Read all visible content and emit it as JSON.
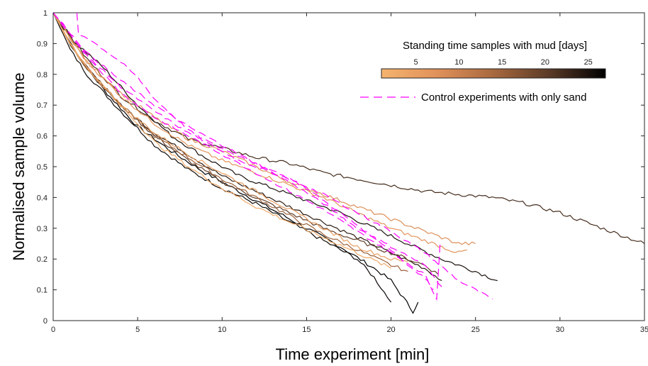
{
  "chart_data": {
    "type": "line",
    "title": "",
    "xlabel": "Time experiment [min]",
    "ylabel": "Normalised sample volume",
    "xlim": [
      0,
      35
    ],
    "ylim": [
      0,
      1
    ],
    "xticks": [
      0,
      5,
      10,
      15,
      20,
      25,
      30,
      35
    ],
    "yticks": [
      0,
      0.1,
      0.2,
      0.3,
      0.4,
      0.5,
      0.6,
      0.7,
      0.8,
      0.9,
      1
    ],
    "grid": false,
    "colorbar": {
      "label": "Standing time samples with mud [days]",
      "range": [
        1,
        27
      ],
      "ticks": [
        5,
        10,
        15,
        20,
        25
      ],
      "colors": [
        "#f5b46e",
        "#e0915a",
        "#a8683e",
        "#5a3a26",
        "#000000"
      ]
    },
    "legend": {
      "position": "top-right",
      "entries": [
        {
          "label": "Control experiments with only sand",
          "color": "#ff00ff",
          "style": "dashed"
        }
      ]
    },
    "series": [
      {
        "group": "mud",
        "days": 27,
        "x": [
          0,
          1,
          2,
          3,
          5,
          7,
          9,
          11,
          13,
          15,
          17,
          19,
          20,
          21.3,
          21.6
        ],
        "y": [
          1,
          0.9,
          0.82,
          0.75,
          0.63,
          0.55,
          0.48,
          0.42,
          0.36,
          0.3,
          0.24,
          0.17,
          0.13,
          0.03,
          0.06
        ]
      },
      {
        "group": "mud",
        "days": 26,
        "x": [
          0,
          1,
          2,
          4,
          6,
          8,
          10,
          12,
          14,
          16,
          18,
          19,
          20
        ],
        "y": [
          1,
          0.88,
          0.8,
          0.68,
          0.57,
          0.49,
          0.43,
          0.38,
          0.32,
          0.26,
          0.2,
          0.14,
          0.06
        ]
      },
      {
        "group": "mud",
        "days": 25,
        "x": [
          0,
          1,
          3,
          5,
          7,
          9,
          11,
          13,
          15,
          17,
          19,
          21,
          23,
          25,
          26.3
        ],
        "y": [
          1,
          0.92,
          0.82,
          0.7,
          0.6,
          0.53,
          0.47,
          0.43,
          0.39,
          0.35,
          0.3,
          0.25,
          0.2,
          0.16,
          0.13
        ]
      },
      {
        "group": "mud",
        "days": 24,
        "x": [
          0,
          1,
          2,
          4,
          6,
          8,
          10,
          12,
          14,
          16,
          18,
          20,
          22,
          23
        ],
        "y": [
          1,
          0.9,
          0.82,
          0.7,
          0.61,
          0.54,
          0.47,
          0.42,
          0.37,
          0.32,
          0.27,
          0.22,
          0.17,
          0.13
        ]
      },
      {
        "group": "mud",
        "days": 22,
        "x": [
          0,
          2,
          4,
          6,
          8,
          10,
          12,
          14,
          16,
          18,
          20,
          22,
          24,
          26,
          28,
          30,
          32,
          34,
          35
        ],
        "y": [
          1,
          0.85,
          0.73,
          0.65,
          0.59,
          0.56,
          0.53,
          0.51,
          0.48,
          0.46,
          0.44,
          0.42,
          0.41,
          0.4,
          0.38,
          0.35,
          0.31,
          0.27,
          0.25
        ]
      },
      {
        "group": "mud",
        "days": 20,
        "x": [
          0,
          1,
          2,
          4,
          6,
          8,
          10,
          12,
          14,
          16,
          18,
          20,
          22,
          22.8
        ],
        "y": [
          1,
          0.9,
          0.82,
          0.7,
          0.6,
          0.52,
          0.45,
          0.4,
          0.35,
          0.3,
          0.26,
          0.22,
          0.18,
          0.15
        ]
      },
      {
        "group": "mud",
        "days": 15,
        "x": [
          0,
          1,
          2,
          4,
          6,
          8,
          10,
          12,
          14,
          16,
          18,
          20,
          21
        ],
        "y": [
          1,
          0.9,
          0.82,
          0.7,
          0.6,
          0.53,
          0.46,
          0.4,
          0.34,
          0.28,
          0.23,
          0.18,
          0.16
        ]
      },
      {
        "group": "mud",
        "days": 8,
        "x": [
          0,
          2,
          4,
          6,
          8,
          10,
          12,
          14,
          16,
          18,
          20,
          22,
          24,
          25
        ],
        "y": [
          1,
          0.84,
          0.74,
          0.66,
          0.59,
          0.55,
          0.5,
          0.45,
          0.41,
          0.37,
          0.33,
          0.29,
          0.25,
          0.25
        ]
      },
      {
        "group": "mud",
        "days": 7,
        "x": [
          0,
          2,
          4,
          6,
          8,
          10,
          12,
          14,
          16,
          18,
          20,
          22,
          24,
          24.5
        ],
        "y": [
          1,
          0.84,
          0.73,
          0.64,
          0.57,
          0.52,
          0.48,
          0.44,
          0.4,
          0.35,
          0.3,
          0.26,
          0.22,
          0.23
        ]
      },
      {
        "group": "mud",
        "days": 5,
        "x": [
          0,
          1,
          2,
          4,
          6,
          8,
          10,
          12,
          14,
          16,
          18,
          20,
          21
        ],
        "y": [
          1,
          0.9,
          0.82,
          0.7,
          0.61,
          0.54,
          0.48,
          0.42,
          0.36,
          0.3,
          0.24,
          0.2,
          0.19
        ]
      },
      {
        "group": "mud",
        "days": 3,
        "x": [
          0,
          1,
          2,
          4,
          6,
          8,
          10,
          12,
          14,
          16,
          18,
          20
        ],
        "y": [
          1,
          0.9,
          0.82,
          0.7,
          0.58,
          0.5,
          0.43,
          0.37,
          0.32,
          0.27,
          0.22,
          0.17
        ]
      },
      {
        "group": "control",
        "x": [
          1.4,
          1.5,
          2,
          3,
          4,
          5,
          6,
          7,
          8,
          9,
          10,
          11,
          12,
          13,
          14,
          15,
          16,
          17,
          18,
          19,
          20,
          21,
          22,
          22.5
        ],
        "y": [
          1,
          0.93,
          0.92,
          0.88,
          0.84,
          0.79,
          0.72,
          0.67,
          0.62,
          0.58,
          0.55,
          0.52,
          0.5,
          0.48,
          0.46,
          0.43,
          0.39,
          0.35,
          0.31,
          0.27,
          0.23,
          0.18,
          0.14,
          0.1
        ]
      },
      {
        "group": "control",
        "x": [
          0,
          2,
          4,
          6,
          8,
          10,
          12,
          14,
          16,
          18,
          20,
          22,
          23
        ],
        "y": [
          1,
          0.87,
          0.78,
          0.7,
          0.63,
          0.57,
          0.51,
          0.45,
          0.38,
          0.3,
          0.24,
          0.18,
          0.11
        ]
      },
      {
        "group": "control",
        "x": [
          0,
          2,
          4,
          6,
          8,
          10,
          12,
          14,
          16,
          18,
          20,
          22,
          24,
          26
        ],
        "y": [
          1,
          0.86,
          0.76,
          0.68,
          0.61,
          0.56,
          0.51,
          0.46,
          0.41,
          0.35,
          0.29,
          0.22,
          0.13,
          0.07
        ]
      },
      {
        "group": "control",
        "x": [
          0,
          2,
          4,
          6,
          8,
          10,
          12,
          14,
          16,
          18,
          20,
          22,
          22.7,
          22.9
        ],
        "y": [
          1,
          0.86,
          0.74,
          0.66,
          0.6,
          0.54,
          0.48,
          0.42,
          0.36,
          0.29,
          0.22,
          0.15,
          0.07,
          0.25
        ]
      }
    ]
  }
}
